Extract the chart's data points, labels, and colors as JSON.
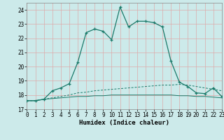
{
  "title": "",
  "xlabel": "Humidex (Indice chaleur)",
  "background_color": "#cceaea",
  "grid_color": "#aacece",
  "line_color": "#1a7a6a",
  "xlim": [
    0,
    23
  ],
  "ylim": [
    17,
    24.5
  ],
  "yticks": [
    17,
    18,
    19,
    20,
    21,
    22,
    23,
    24
  ],
  "xticks": [
    0,
    1,
    2,
    3,
    4,
    5,
    6,
    7,
    8,
    9,
    10,
    11,
    12,
    13,
    14,
    15,
    16,
    17,
    18,
    19,
    20,
    21,
    22,
    23
  ],
  "curve1_x": [
    0,
    1,
    2,
    3,
    4,
    5,
    6,
    7,
    8,
    9,
    10,
    11,
    12,
    13,
    14,
    15,
    16,
    17,
    18,
    19,
    20,
    21,
    22,
    23
  ],
  "curve1_y": [
    17.6,
    17.6,
    17.7,
    18.3,
    18.5,
    18.8,
    20.3,
    22.4,
    22.65,
    22.5,
    21.9,
    24.2,
    22.8,
    23.2,
    23.2,
    23.1,
    22.8,
    20.4,
    18.9,
    18.6,
    18.15,
    18.1,
    18.5,
    17.9
  ],
  "curve2_x": [
    0,
    1,
    2,
    3,
    4,
    5,
    6,
    7,
    8,
    9,
    10,
    11,
    12,
    13,
    14,
    15,
    16,
    17,
    18,
    19,
    20,
    21,
    22,
    23
  ],
  "curve2_y": [
    17.6,
    17.6,
    17.7,
    17.8,
    17.9,
    18.0,
    18.15,
    18.2,
    18.3,
    18.35,
    18.4,
    18.45,
    18.5,
    18.55,
    18.6,
    18.65,
    18.7,
    18.7,
    18.75,
    18.7,
    18.6,
    18.5,
    18.4,
    18.3
  ],
  "curve3_x": [
    0,
    1,
    2,
    3,
    4,
    5,
    6,
    7,
    8,
    9,
    10,
    11,
    12,
    13,
    14,
    15,
    16,
    17,
    18,
    19,
    20,
    21,
    22,
    23
  ],
  "curve3_y": [
    17.6,
    17.6,
    17.7,
    17.75,
    17.8,
    17.85,
    17.9,
    17.9,
    17.95,
    17.95,
    18.0,
    18.0,
    18.0,
    18.0,
    18.0,
    18.0,
    18.0,
    18.0,
    17.95,
    17.95,
    17.9,
    17.9,
    17.85,
    17.8
  ]
}
